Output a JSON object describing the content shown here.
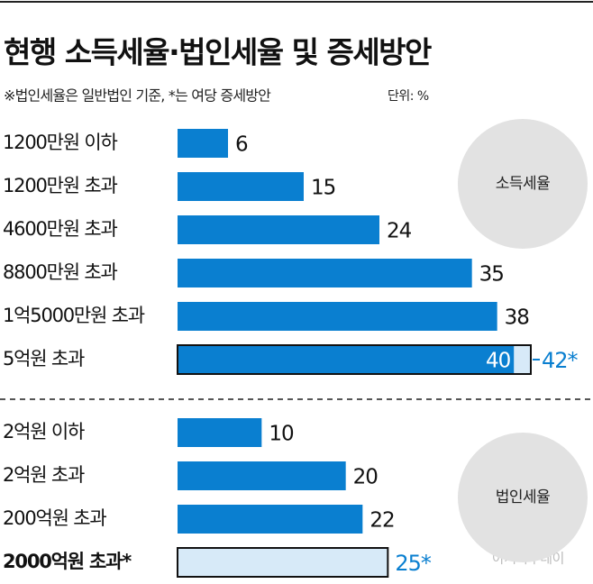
{
  "title": "현행 소득세율·법인세율 및 증세방안",
  "subtitle": "※법인세율은 일반법인 기준, *는 여당 증세방안",
  "unit": "단위: %",
  "watermark": "아시아투데이",
  "chart_data": [
    {
      "type": "bar",
      "label": "소득세율",
      "categories": [
        "1200만원 이하",
        "1200만원 초과",
        "4600만원 초과",
        "8800만원 초과",
        "1억5000만원 초과",
        "5억원 초과"
      ],
      "values": [
        6,
        15,
        24,
        35,
        38,
        40
      ],
      "proposed_values": [
        null,
        null,
        null,
        null,
        null,
        42
      ],
      "proposed_value_labels": [
        null,
        null,
        null,
        null,
        null,
        "42*"
      ],
      "color": "#0a7fd0",
      "proposed_color": "#d7eaf8",
      "xlim": [
        0,
        45
      ]
    },
    {
      "type": "bar",
      "label": "법인세율",
      "categories": [
        "2억원 이하",
        "2억원 초과",
        "200억원 초과",
        "2000억원 초과*"
      ],
      "values": [
        10,
        20,
        22,
        null
      ],
      "proposed_values": [
        null,
        null,
        null,
        25
      ],
      "proposed_value_labels": [
        null,
        null,
        null,
        "25*"
      ],
      "color": "#0a7fd0",
      "proposed_color": "#d7eaf8",
      "xlim": [
        0,
        45
      ]
    }
  ]
}
